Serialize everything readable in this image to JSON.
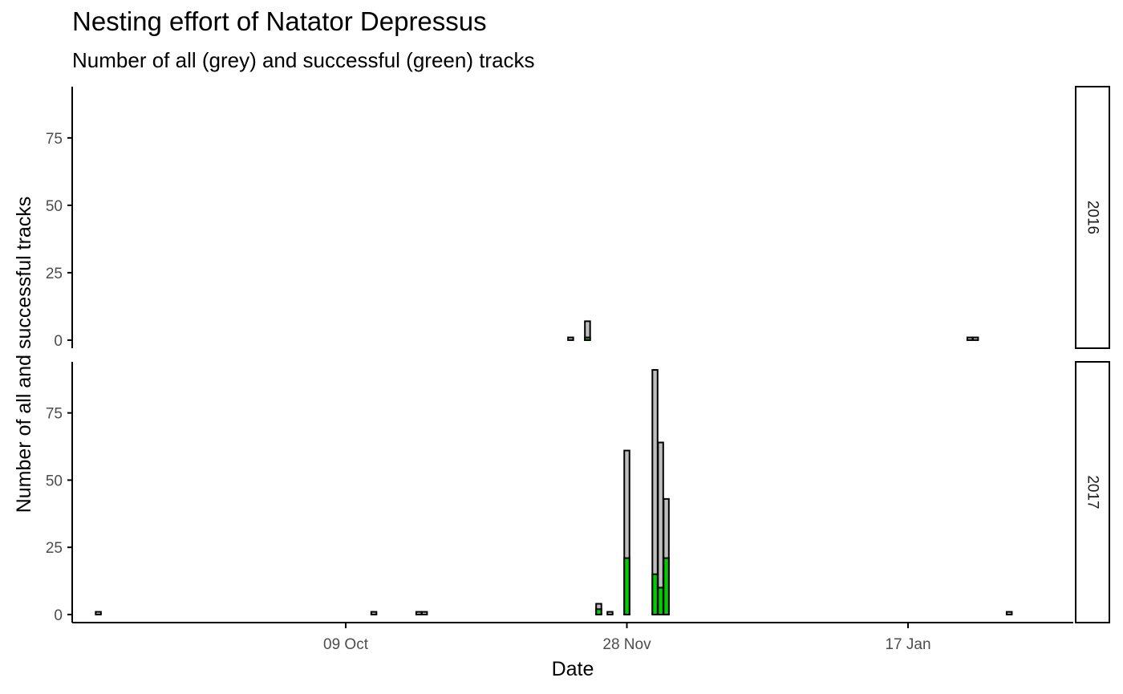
{
  "chart_data": {
    "type": "bar",
    "title": "Nesting effort of Natator Depressus",
    "subtitle": "Number of all (grey) and successful (green) tracks",
    "xlabel": "Date",
    "ylabel": "Number of all and successful tracks",
    "x_tick_labels": [
      "09 Oct",
      "28 Nov",
      "17 Jan"
    ],
    "y_ticks": [
      0,
      25,
      50,
      75
    ],
    "ylim": [
      -3,
      94
    ],
    "grid": false,
    "colors": {
      "all": "#bebebe",
      "successful": "#00cc00",
      "outline": "#000000"
    },
    "panels": [
      {
        "facet_label": "2016",
        "bars": [
          {
            "date": "Nov 18",
            "all": 1,
            "successful": 0
          },
          {
            "date": "Nov 21",
            "all": 7,
            "successful": 1
          },
          {
            "date": "Jan 28",
            "all": 1,
            "successful": 0
          },
          {
            "date": "Jan 29",
            "all": 1,
            "successful": 0
          }
        ]
      },
      {
        "facet_label": "2017",
        "bars": [
          {
            "date": "Aug 26",
            "all": 1,
            "successful": 0
          },
          {
            "date": "Oct 14",
            "all": 1,
            "successful": 0
          },
          {
            "date": "Oct 22",
            "all": 1,
            "successful": 0
          },
          {
            "date": "Oct 23",
            "all": 1,
            "successful": 0
          },
          {
            "date": "Nov 23",
            "all": 4,
            "successful": 2
          },
          {
            "date": "Nov 25",
            "all": 1,
            "successful": 0
          },
          {
            "date": "Nov 28",
            "all": 61,
            "successful": 21
          },
          {
            "date": "Dec 3",
            "all": 91,
            "successful": 15
          },
          {
            "date": "Dec 4",
            "all": 64,
            "successful": 10
          },
          {
            "date": "Dec 5",
            "all": 43,
            "successful": 21
          },
          {
            "date": "Feb 4",
            "all": 1,
            "successful": 0
          }
        ]
      }
    ]
  }
}
